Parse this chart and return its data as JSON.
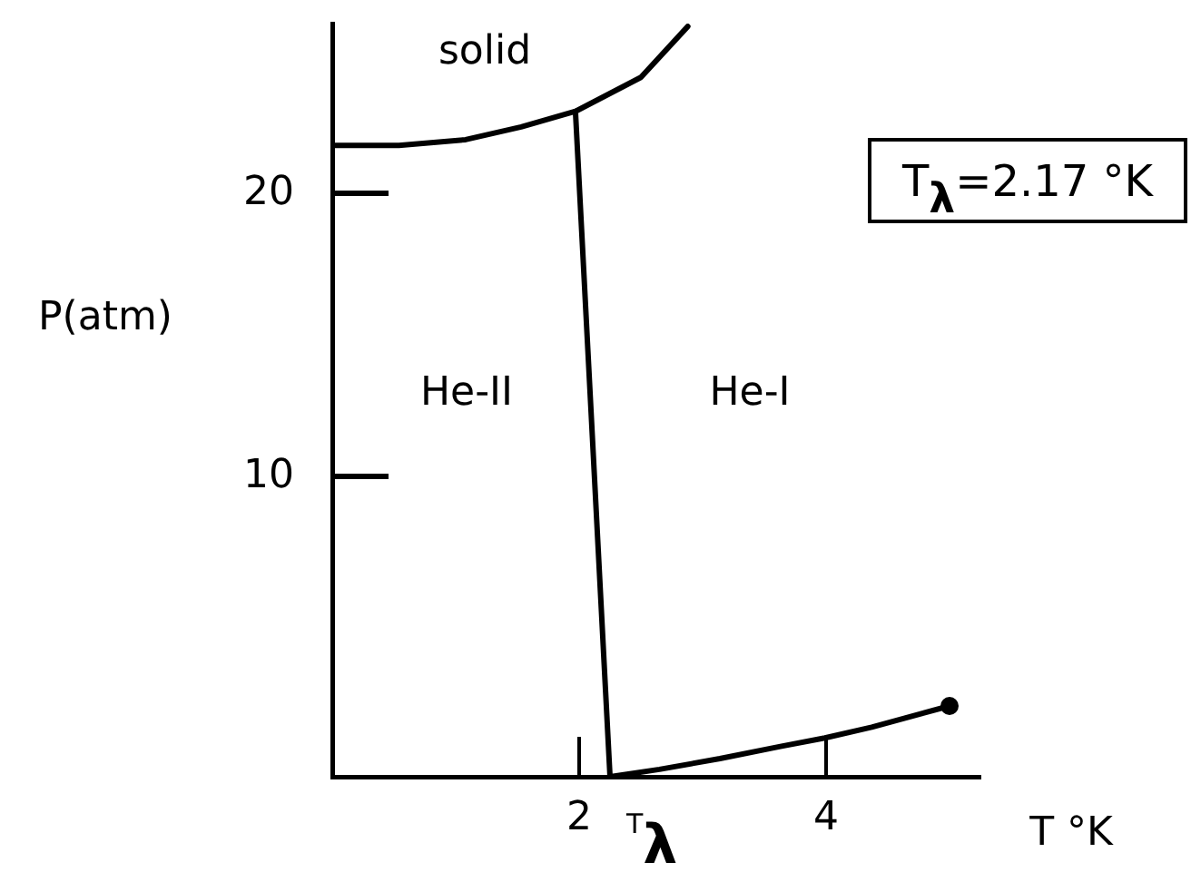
{
  "chart_data": {
    "type": "line",
    "xlabel": "T °K",
    "ylabel": "P(atm)",
    "xlim": [
      0,
      5.25
    ],
    "xticks": [
      2,
      4
    ],
    "ylim": [
      -0.6,
      26
    ],
    "yticks": [
      10,
      20
    ],
    "grid": false,
    "legend": false,
    "marker": "none",
    "line_style": "solid",
    "series": [
      {
        "color": "#000000",
        "x": [
          0,
          0.54,
          1.08,
          1.53,
          1.97,
          2.5,
          2.88
        ],
        "values": [
          21.7,
          21.7,
          21.9,
          22.35,
          22.9,
          24.1,
          25.9
        ]
      },
      {
        "color": "#000000",
        "x": [
          1.97,
          2.25
        ],
        "values": [
          22.9,
          -0.6
        ]
      },
      {
        "color": "#000000",
        "x": [
          2.25,
          2.65,
          3.14,
          3.63,
          3.99,
          4.37,
          5.0
        ],
        "values": [
          -0.6,
          -0.34,
          0.04,
          0.47,
          0.77,
          1.15,
          1.9
        ]
      },
      {
        "type": "scatter",
        "color": "#000000",
        "x": [
          5.0
        ],
        "values": [
          1.9
        ],
        "marker": "circle"
      }
    ],
    "annotations": [
      "solid",
      "He-II",
      "He-I",
      "T$_{λ}$",
      "T$_{λ}$=2.17 °K"
    ]
  }
}
